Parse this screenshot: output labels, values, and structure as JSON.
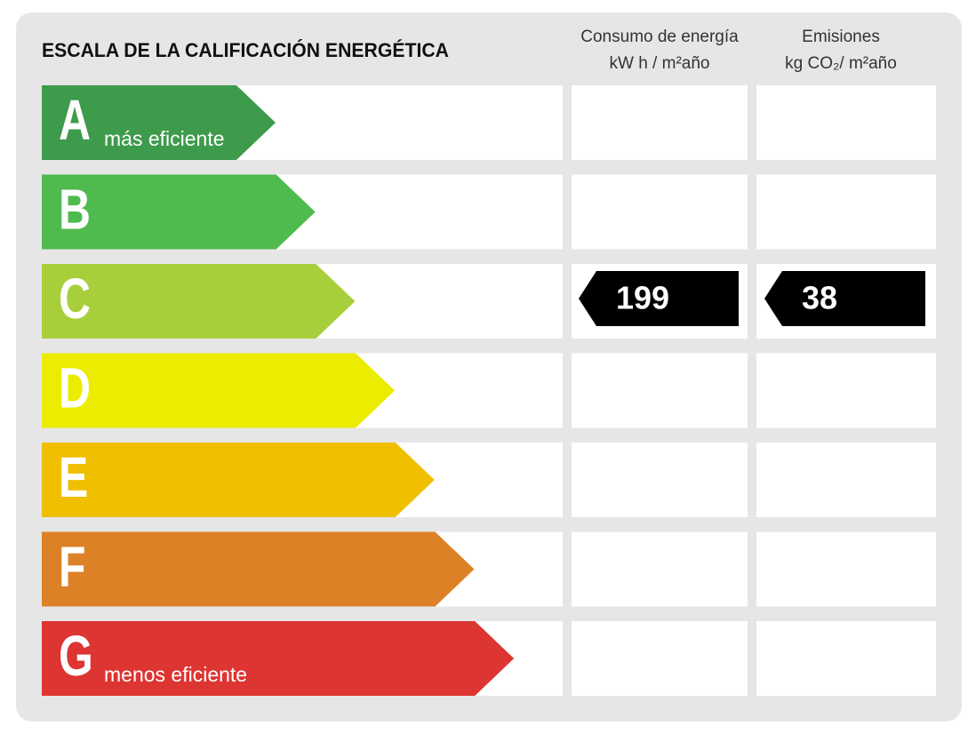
{
  "header": {
    "title": "ESCALA DE LA CALIFICACIÓN ENERGÉTICA",
    "columns": [
      [
        "Consumo de energía",
        "kW h / m²año"
      ],
      [
        "Emisiones",
        "kg CO₂/ m²año"
      ]
    ]
  },
  "rows": [
    {
      "letter": "A",
      "note": "más eficiente",
      "color": "#3d9b4b"
    },
    {
      "letter": "B",
      "color": "#4fba4d"
    },
    {
      "letter": "C",
      "color": "#a7cf3b",
      "consumption": 199,
      "emissions": 38
    },
    {
      "letter": "D",
      "color": "#ecec00"
    },
    {
      "letter": "E",
      "color": "#efbf00"
    },
    {
      "letter": "F",
      "color": "#dd8126"
    },
    {
      "letter": "G",
      "note": "menos eficiente",
      "color": "#dd3532"
    }
  ]
}
